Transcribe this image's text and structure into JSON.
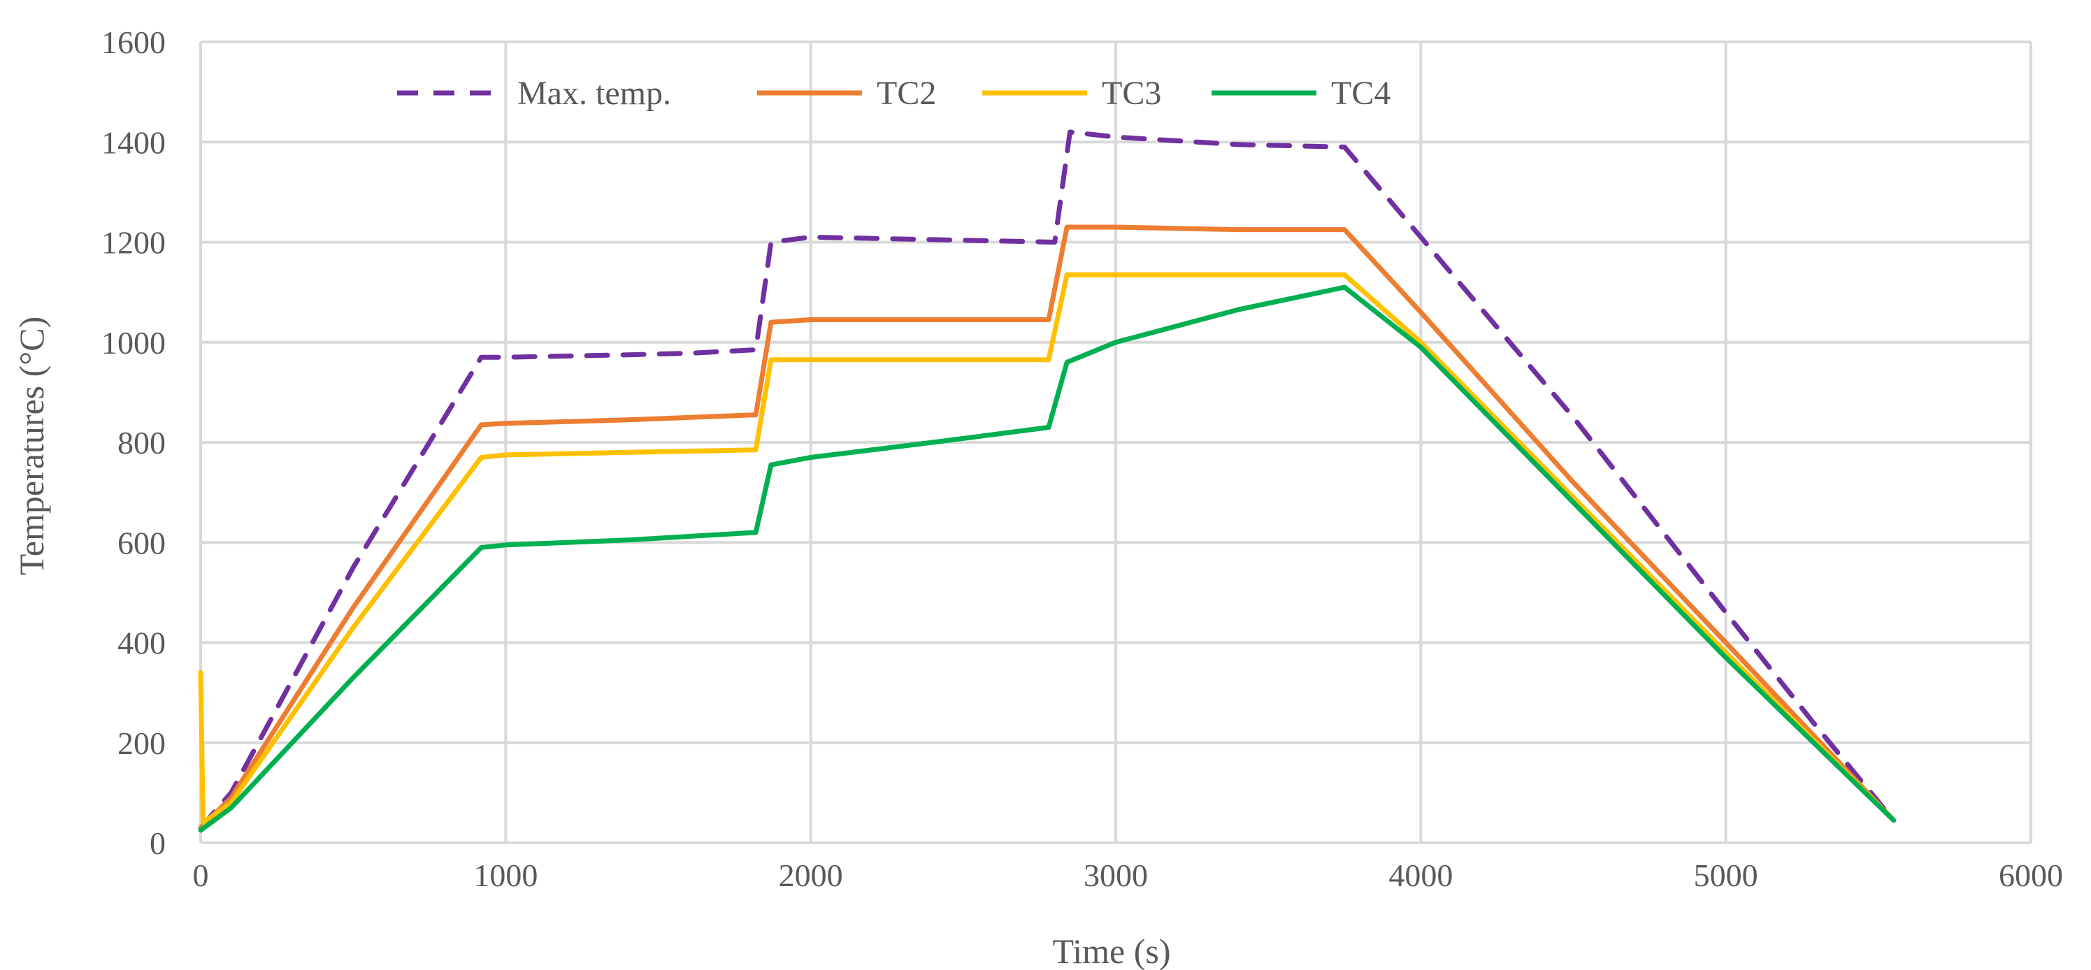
{
  "chart_data": {
    "type": "line",
    "title": "",
    "xlabel": "Time (s)",
    "ylabel": "Temperatures (°C)",
    "xlim": [
      0,
      6000
    ],
    "ylim": [
      0,
      1600
    ],
    "xticks": [
      0,
      1000,
      2000,
      3000,
      4000,
      5000,
      6000
    ],
    "yticks": [
      0,
      200,
      400,
      600,
      800,
      1000,
      1200,
      1400,
      1600
    ],
    "grid": true,
    "legend_position": "top",
    "series": [
      {
        "name": "Max. temp.",
        "color": "#7030a0",
        "dash": "dashed",
        "points": [
          [
            0,
            30
          ],
          [
            100,
            100
          ],
          [
            500,
            550
          ],
          [
            920,
            970
          ],
          [
            1000,
            970
          ],
          [
            1400,
            975
          ],
          [
            1600,
            978
          ],
          [
            1820,
            985
          ],
          [
            1870,
            1200
          ],
          [
            2000,
            1210
          ],
          [
            2400,
            1205
          ],
          [
            2800,
            1200
          ],
          [
            2850,
            1420
          ],
          [
            3000,
            1410
          ],
          [
            3400,
            1395
          ],
          [
            3750,
            1390
          ],
          [
            4000,
            1210
          ],
          [
            4500,
            850
          ],
          [
            5000,
            460
          ],
          [
            5300,
            230
          ],
          [
            5550,
            45
          ]
        ]
      },
      {
        "name": "TC2",
        "color": "#ed7d31",
        "dash": "solid",
        "points": [
          [
            0,
            30
          ],
          [
            100,
            90
          ],
          [
            500,
            470
          ],
          [
            920,
            835
          ],
          [
            1000,
            838
          ],
          [
            1400,
            845
          ],
          [
            1820,
            855
          ],
          [
            1870,
            1040
          ],
          [
            2000,
            1045
          ],
          [
            2400,
            1045
          ],
          [
            2780,
            1045
          ],
          [
            2840,
            1230
          ],
          [
            3000,
            1230
          ],
          [
            3400,
            1225
          ],
          [
            3750,
            1225
          ],
          [
            4000,
            1060
          ],
          [
            4500,
            720
          ],
          [
            5000,
            400
          ],
          [
            5550,
            45
          ]
        ]
      },
      {
        "name": "TC3",
        "color": "#ffc000",
        "dash": "solid",
        "points": [
          [
            0,
            340
          ],
          [
            8,
            40
          ],
          [
            100,
            80
          ],
          [
            500,
            430
          ],
          [
            920,
            770
          ],
          [
            1000,
            775
          ],
          [
            1400,
            780
          ],
          [
            1820,
            785
          ],
          [
            1870,
            965
          ],
          [
            2000,
            965
          ],
          [
            2400,
            965
          ],
          [
            2780,
            965
          ],
          [
            2840,
            1135
          ],
          [
            3000,
            1135
          ],
          [
            3400,
            1135
          ],
          [
            3750,
            1135
          ],
          [
            4000,
            1000
          ],
          [
            4500,
            690
          ],
          [
            5000,
            380
          ],
          [
            5550,
            45
          ]
        ]
      },
      {
        "name": "TC4",
        "color": "#00b050",
        "dash": "solid",
        "points": [
          [
            0,
            25
          ],
          [
            100,
            70
          ],
          [
            500,
            330
          ],
          [
            920,
            590
          ],
          [
            1000,
            595
          ],
          [
            1400,
            605
          ],
          [
            1820,
            620
          ],
          [
            1870,
            755
          ],
          [
            2000,
            770
          ],
          [
            2400,
            800
          ],
          [
            2780,
            830
          ],
          [
            2840,
            960
          ],
          [
            3000,
            1000
          ],
          [
            3400,
            1065
          ],
          [
            3750,
            1110
          ],
          [
            4000,
            990
          ],
          [
            4500,
            680
          ],
          [
            5000,
            370
          ],
          [
            5550,
            45
          ]
        ]
      }
    ]
  }
}
